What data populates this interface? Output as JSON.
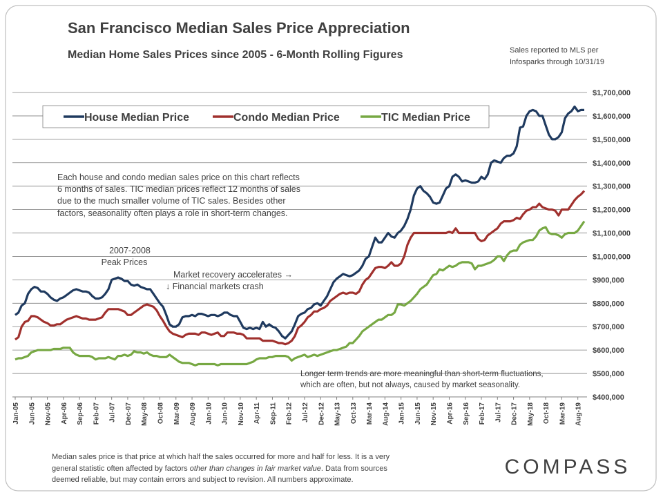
{
  "chart_data": {
    "type": "line",
    "title": "San Francisco Median Sales Price Appreciation",
    "subtitle": "Median Home Sales Prices since 2005 - 6-Month Rolling Figures",
    "source_note": [
      "Sales reported to MLS per",
      "Infosparks through 10/31/19"
    ],
    "categories": [
      "Jan-05",
      null,
      null,
      null,
      null,
      "Jun-05",
      null,
      null,
      null,
      null,
      "Nov-05",
      null,
      null,
      null,
      null,
      "Apr-06",
      null,
      null,
      null,
      null,
      "Sep-06",
      null,
      null,
      null,
      null,
      "Feb-07",
      null,
      null,
      null,
      null,
      "Jul-07",
      null,
      null,
      null,
      null,
      "Dec-07",
      null,
      null,
      null,
      null,
      "May-08",
      null,
      null,
      null,
      null,
      "Oct-08",
      null,
      null,
      null,
      null,
      "Mar-09",
      null,
      null,
      null,
      null,
      "Aug-09",
      null,
      null,
      null,
      null,
      "Jan-10",
      null,
      null,
      null,
      null,
      "Jun-10",
      null,
      null,
      null,
      null,
      "Nov-10",
      null,
      null,
      null,
      null,
      "Apr-11",
      null,
      null,
      null,
      null,
      "Sep-11",
      null,
      null,
      null,
      null,
      "Feb-12",
      null,
      null,
      null,
      null,
      "Jul-12",
      null,
      null,
      null,
      null,
      "Dec-12",
      null,
      null,
      null,
      null,
      "May-13",
      null,
      null,
      null,
      null,
      "Oct-13",
      null,
      null,
      null,
      null,
      "Mar-14",
      null,
      null,
      null,
      null,
      "Aug-14",
      null,
      null,
      null,
      null,
      "Jan-15",
      null,
      null,
      null,
      null,
      "Jun-15",
      null,
      null,
      null,
      null,
      "Nov-15",
      null,
      null,
      null,
      null,
      "Apr-16",
      null,
      null,
      null,
      null,
      "Sep-16",
      null,
      null,
      null,
      null,
      "Feb-17",
      null,
      null,
      null,
      null,
      "Jul-17",
      null,
      null,
      null,
      null,
      "Dec-17",
      null,
      null,
      null,
      null,
      "May-18",
      null,
      null,
      null,
      null,
      "Oct-18",
      null,
      null,
      null,
      null,
      "Mar-19",
      null,
      null,
      null,
      null,
      "Aug-19",
      null,
      null
    ],
    "series": [
      {
        "name": "House Median Price",
        "color": "#1f3a5f",
        "values": [
          750000,
          760000,
          790000,
          800000,
          840000,
          860000,
          870000,
          865000,
          850000,
          850000,
          840000,
          825000,
          815000,
          810000,
          820000,
          825000,
          835000,
          845000,
          855000,
          860000,
          855000,
          850000,
          850000,
          845000,
          830000,
          820000,
          820000,
          825000,
          840000,
          860000,
          900000,
          905000,
          910000,
          905000,
          895000,
          895000,
          880000,
          875000,
          880000,
          870000,
          865000,
          860000,
          860000,
          840000,
          820000,
          800000,
          785000,
          750000,
          710000,
          700000,
          700000,
          710000,
          740000,
          745000,
          745000,
          750000,
          745000,
          755000,
          755000,
          750000,
          745000,
          750000,
          750000,
          745000,
          750000,
          760000,
          760000,
          750000,
          745000,
          745000,
          720000,
          695000,
          690000,
          695000,
          690000,
          695000,
          690000,
          720000,
          700000,
          710000,
          700000,
          695000,
          680000,
          660000,
          650000,
          665000,
          680000,
          710000,
          745000,
          755000,
          760000,
          775000,
          780000,
          795000,
          800000,
          790000,
          810000,
          830000,
          860000,
          890000,
          905000,
          915000,
          925000,
          920000,
          915000,
          920000,
          930000,
          940000,
          960000,
          990000,
          1000000,
          1040000,
          1080000,
          1060000,
          1060000,
          1080000,
          1100000,
          1085000,
          1080000,
          1100000,
          1110000,
          1130000,
          1160000,
          1200000,
          1260000,
          1290000,
          1300000,
          1280000,
          1270000,
          1255000,
          1230000,
          1225000,
          1230000,
          1260000,
          1290000,
          1300000,
          1340000,
          1350000,
          1340000,
          1320000,
          1325000,
          1320000,
          1315000,
          1315000,
          1320000,
          1340000,
          1330000,
          1350000,
          1400000,
          1410000,
          1405000,
          1400000,
          1420000,
          1430000,
          1430000,
          1440000,
          1470000,
          1550000,
          1555000,
          1600000,
          1620000,
          1625000,
          1620000,
          1600000,
          1600000,
          1560000,
          1520000,
          1500000,
          1500000,
          1510000,
          1530000,
          1590000,
          1610000,
          1620000,
          1640000,
          1620000,
          1625000,
          1625000
        ]
      },
      {
        "name": "Condo Median Price",
        "color": "#a0302d",
        "values": [
          645000,
          655000,
          700000,
          720000,
          725000,
          745000,
          745000,
          740000,
          730000,
          720000,
          715000,
          705000,
          705000,
          710000,
          710000,
          720000,
          730000,
          735000,
          740000,
          745000,
          740000,
          735000,
          735000,
          730000,
          730000,
          730000,
          735000,
          740000,
          760000,
          775000,
          775000,
          775000,
          775000,
          770000,
          765000,
          750000,
          750000,
          760000,
          770000,
          780000,
          790000,
          795000,
          790000,
          785000,
          770000,
          745000,
          725000,
          700000,
          680000,
          670000,
          665000,
          660000,
          655000,
          665000,
          670000,
          670000,
          670000,
          665000,
          675000,
          675000,
          670000,
          665000,
          670000,
          675000,
          660000,
          660000,
          675000,
          675000,
          675000,
          670000,
          670000,
          665000,
          650000,
          650000,
          650000,
          650000,
          650000,
          640000,
          640000,
          640000,
          640000,
          635000,
          630000,
          630000,
          625000,
          630000,
          640000,
          660000,
          695000,
          705000,
          720000,
          740000,
          750000,
          765000,
          765000,
          775000,
          780000,
          790000,
          810000,
          820000,
          830000,
          840000,
          845000,
          840000,
          845000,
          845000,
          840000,
          850000,
          880000,
          900000,
          910000,
          930000,
          950000,
          955000,
          955000,
          950000,
          960000,
          975000,
          960000,
          960000,
          970000,
          1000000,
          1050000,
          1080000,
          1100000,
          1100000,
          1100000,
          1100000,
          1100000,
          1100000,
          1100000,
          1100000,
          1100000,
          1100000,
          1100000,
          1105000,
          1100000,
          1120000,
          1100000,
          1100000,
          1100000,
          1100000,
          1100000,
          1100000,
          1075000,
          1065000,
          1070000,
          1090000,
          1100000,
          1110000,
          1120000,
          1140000,
          1150000,
          1150000,
          1150000,
          1155000,
          1165000,
          1160000,
          1180000,
          1195000,
          1200000,
          1210000,
          1210000,
          1225000,
          1210000,
          1205000,
          1200000,
          1200000,
          1195000,
          1175000,
          1200000,
          1200000,
          1200000,
          1220000,
          1240000,
          1255000,
          1265000,
          1280000
        ]
      },
      {
        "name": "TIC Median Price",
        "color": "#77a843",
        "values": [
          560000,
          565000,
          565000,
          570000,
          575000,
          590000,
          595000,
          600000,
          600000,
          600000,
          600000,
          600000,
          605000,
          605000,
          605000,
          610000,
          610000,
          610000,
          590000,
          580000,
          575000,
          575000,
          575000,
          575000,
          570000,
          560000,
          565000,
          565000,
          565000,
          570000,
          565000,
          560000,
          575000,
          575000,
          580000,
          575000,
          580000,
          595000,
          590000,
          590000,
          585000,
          590000,
          580000,
          575000,
          575000,
          570000,
          570000,
          570000,
          580000,
          570000,
          560000,
          550000,
          545000,
          545000,
          545000,
          540000,
          535000,
          540000,
          540000,
          540000,
          540000,
          540000,
          540000,
          535000,
          540000,
          540000,
          540000,
          540000,
          540000,
          540000,
          540000,
          540000,
          540000,
          545000,
          550000,
          560000,
          565000,
          565000,
          565000,
          570000,
          570000,
          575000,
          575000,
          575000,
          575000,
          570000,
          555000,
          565000,
          570000,
          575000,
          580000,
          570000,
          575000,
          580000,
          575000,
          580000,
          585000,
          590000,
          595000,
          600000,
          600000,
          605000,
          610000,
          615000,
          630000,
          630000,
          645000,
          660000,
          680000,
          690000,
          700000,
          710000,
          720000,
          730000,
          730000,
          740000,
          750000,
          750000,
          760000,
          795000,
          795000,
          790000,
          800000,
          810000,
          825000,
          840000,
          860000,
          870000,
          880000,
          900000,
          920000,
          925000,
          945000,
          940000,
          950000,
          960000,
          955000,
          960000,
          970000,
          975000,
          975000,
          975000,
          970000,
          945000,
          960000,
          960000,
          965000,
          970000,
          975000,
          985000,
          1000000,
          1000000,
          980000,
          1005000,
          1020000,
          1025000,
          1025000,
          1050000,
          1060000,
          1065000,
          1070000,
          1070000,
          1085000,
          1110000,
          1120000,
          1125000,
          1100000,
          1095000,
          1095000,
          1090000,
          1080000,
          1095000,
          1100000,
          1100000,
          1100000,
          1110000,
          1130000,
          1150000
        ]
      }
    ],
    "ylim": [
      400000,
      1700000
    ],
    "yticks": [
      {
        "value": 400000,
        "label": "$400,000"
      },
      {
        "value": 500000,
        "label": "$500,000"
      },
      {
        "value": 600000,
        "label": "$600,000"
      },
      {
        "value": 700000,
        "label": "$700,000"
      },
      {
        "value": 800000,
        "label": "$800,000"
      },
      {
        "value": 900000,
        "label": "$900,000"
      },
      {
        "value": 1000000,
        "label": "$1,000,000"
      },
      {
        "value": 1100000,
        "label": "$1,100,000"
      },
      {
        "value": 1200000,
        "label": "$1,200,000"
      },
      {
        "value": 1300000,
        "label": "$1,300,000"
      },
      {
        "value": 1400000,
        "label": "$1,400,000"
      },
      {
        "value": 1500000,
        "label": "$1,500,000"
      },
      {
        "value": 1600000,
        "label": "$1,600,000"
      },
      {
        "value": 1700000,
        "label": "$1,700,000"
      }
    ],
    "grid": true,
    "legend": "top",
    "annotations": {
      "explanation": [
        "Each house and condo median sales price on this chart reflects",
        "6 months of sales. TIC median prices reflect 12 months of sales",
        "due to the much smaller volume of TIC sales. Besides other",
        "factors, seasonality often plays a role in short-term changes."
      ],
      "peak": [
        "2007-2008",
        "Peak Prices"
      ],
      "recovery": "Market recovery accelerates →",
      "crash": "↓ Financial markets crash",
      "trends": [
        "Longer term trends are more meaningful than short-term fluctuations,",
        "which are often, but not always, caused by market seasonality."
      ]
    },
    "footer_note": [
      [
        "Median sales price is that price at which half the sales occurred for more and half for less. It is a very"
      ],
      [
        "general statistic often affected by factors ",
        "other than changes in fair market value",
        ". Data from sources"
      ],
      [
        "deemed reliable, but may contain errors and subject to revision. All numbers approximate."
      ]
    ],
    "logo": "COMPASS"
  }
}
